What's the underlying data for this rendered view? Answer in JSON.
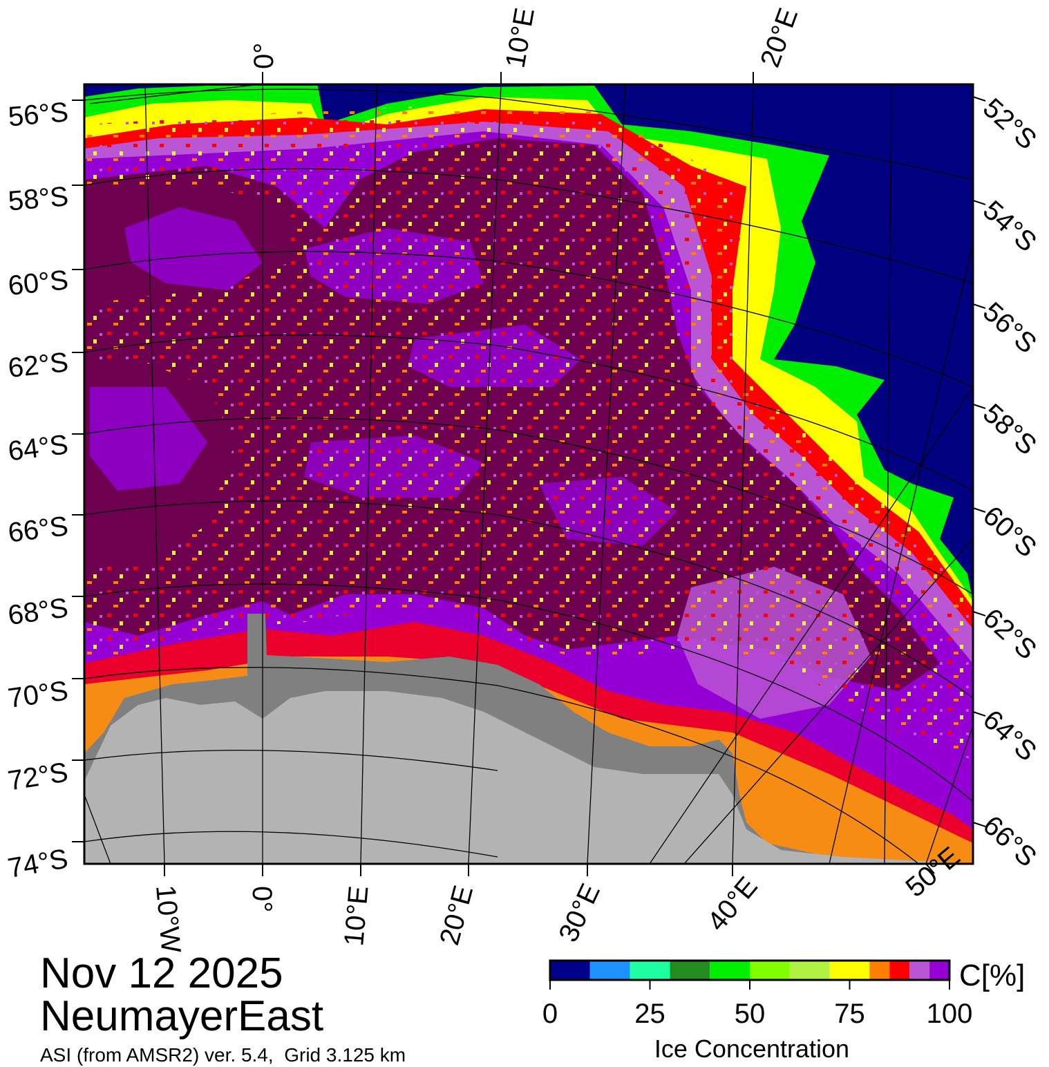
{
  "title": {
    "date": "Nov 12 2025",
    "region": "NeumayerEast",
    "source": "ASI (from AMSR2) ver. 5.4,  Grid 3.125 km"
  },
  "map": {
    "lat_labels_left": [
      "56°S",
      "58°S",
      "60°S",
      "62°S",
      "64°S",
      "66°S",
      "68°S",
      "70°S",
      "72°S",
      "74°S"
    ],
    "lat_labels_right": [
      "52°S",
      "54°S",
      "56°S",
      "58°S",
      "60°S",
      "62°S",
      "64°S",
      "66°S"
    ],
    "lon_labels_top": [
      "0°",
      "10°E",
      "20°E"
    ],
    "lon_labels_bottom": [
      "10°W",
      "0°",
      "10°E",
      "20°E",
      "30°E",
      "40°E",
      "50°E"
    ],
    "colors": {
      "open_water": "#000080",
      "ice_shelf": "#808080",
      "land": "#b3b3b3",
      "ice_100": "#6e0050",
      "ice_90": "#9400d3",
      "ice_85": "#ba55d3",
      "ice_80": "#ff0000",
      "ice_75": "#ff8000",
      "ice_70": "#ffff00"
    }
  },
  "colorbar": {
    "unit": "C[%]",
    "label": "Ice Concentration",
    "ticks": [
      "0",
      "25",
      "50",
      "75",
      "100"
    ],
    "bins": [
      {
        "from": 0,
        "to": 10,
        "color": "#00008b"
      },
      {
        "from": 10,
        "to": 20,
        "color": "#1e90ff"
      },
      {
        "from": 20,
        "to": 30,
        "color": "#1effa0"
      },
      {
        "from": 30,
        "to": 40,
        "color": "#228b22"
      },
      {
        "from": 40,
        "to": 50,
        "color": "#00ee00"
      },
      {
        "from": 50,
        "to": 60,
        "color": "#7fff00"
      },
      {
        "from": 60,
        "to": 70,
        "color": "#b0f040"
      },
      {
        "from": 70,
        "to": 80,
        "color": "#ffff00"
      },
      {
        "from": 80,
        "to": 85,
        "color": "#ff8000"
      },
      {
        "from": 85,
        "to": 90,
        "color": "#ff0000"
      },
      {
        "from": 90,
        "to": 95,
        "color": "#ba55d3"
      },
      {
        "from": 95,
        "to": 100,
        "color": "#9400d3"
      }
    ]
  }
}
